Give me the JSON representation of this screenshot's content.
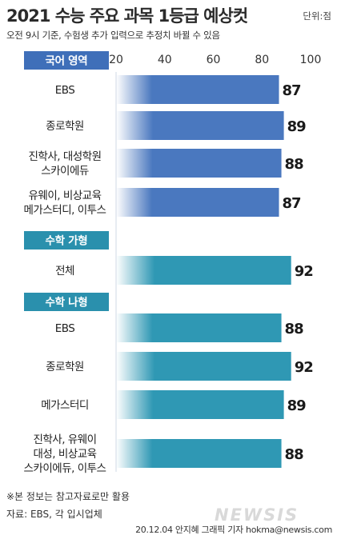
{
  "title": "2021 수능 주요 과목 1등급 예상컷",
  "unit": "단위:점",
  "subtitle": "오전 9시 기준, 수험생 추가 입력으로 추정치 바뀔 수 있음",
  "note": "※본 정보는 참고자료로만 활용",
  "source": "자료: EBS, 각 입시업체",
  "credit": "20.12.04 안지혜 그래픽 기자 hokma@newsis.com",
  "logo": "NEWSIS",
  "colors": {
    "korean_bar": "#4a78bf",
    "math_bar": "#2f98b4",
    "korean_header": "#3f6fb9",
    "math_header": "#2a90ad"
  },
  "chart_data": {
    "type": "bar",
    "orientation": "horizontal",
    "xlim": [
      20,
      100
    ],
    "xticks": [
      20,
      40,
      60,
      80,
      100
    ],
    "grid": false,
    "sections": [
      {
        "name": "국어 영역",
        "items": [
          {
            "label": [
              "EBS"
            ],
            "value": 87
          },
          {
            "label": [
              "종로학원"
            ],
            "value": 89
          },
          {
            "label": [
              "진학사, 대성학원",
              "스카이에듀"
            ],
            "value": 88
          },
          {
            "label": [
              "유웨이, 비상교육",
              "메가스터디, 이투스"
            ],
            "value": 87
          }
        ]
      },
      {
        "name": "수학 가형",
        "items": [
          {
            "label": [
              "전체"
            ],
            "value": 92
          }
        ]
      },
      {
        "name": "수학 나형",
        "items": [
          {
            "label": [
              "EBS"
            ],
            "value": 88
          },
          {
            "label": [
              "종로학원"
            ],
            "value": 92
          },
          {
            "label": [
              "메가스터디"
            ],
            "value": 89
          },
          {
            "label": [
              "진학사, 유웨이",
              "대성, 비상교육",
              "스카이에듀, 이투스"
            ],
            "value": 88
          }
        ]
      }
    ]
  }
}
